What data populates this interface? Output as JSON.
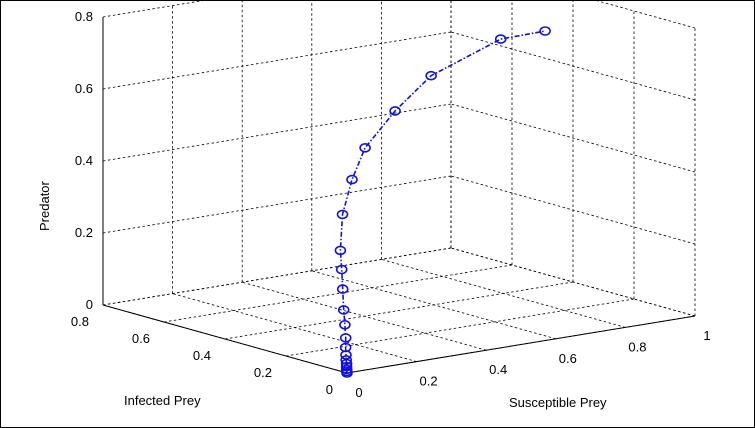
{
  "chart_data": {
    "type": "scatter",
    "projection": "3d",
    "xlabel": "Susceptible Prey",
    "ylabel": "Infected Prey",
    "zlabel": "Predator",
    "xlim": [
      0,
      1
    ],
    "ylim": [
      0,
      0.8
    ],
    "zlim": [
      0,
      0.8
    ],
    "xticks": [
      "0",
      "0.2",
      "0.4",
      "0.6",
      "0.8",
      "1"
    ],
    "yticks": [
      "0",
      "0.2",
      "0.4",
      "0.6",
      "0.8"
    ],
    "zticks": [
      "0",
      "0.2",
      "0.4",
      "0.6",
      "0.8"
    ],
    "grid": true,
    "line_style": "dash-dot with circle markers",
    "colors": {
      "series": "#1010e0"
    },
    "series": [
      {
        "x": [
          0.0,
          0.003,
          0.007,
          0.012,
          0.018,
          0.025,
          0.034,
          0.046,
          0.062,
          0.08,
          0.1,
          0.128,
          0.16,
          0.2,
          0.25,
          0.33,
          0.42,
          0.55,
          0.68,
          0.88,
          0.99
        ],
        "y": [
          0.0,
          0.004,
          0.009,
          0.015,
          0.022,
          0.031,
          0.042,
          0.057,
          0.075,
          0.098,
          0.125,
          0.16,
          0.2,
          0.25,
          0.3,
          0.36,
          0.42,
          0.47,
          0.5,
          0.5,
          0.48
        ],
        "z": [
          0.0,
          0.003,
          0.007,
          0.012,
          0.018,
          0.025,
          0.035,
          0.05,
          0.07,
          0.098,
          0.13,
          0.175,
          0.215,
          0.25,
          0.33,
          0.4,
          0.46,
          0.53,
          0.6,
          0.67,
          0.68
        ]
      }
    ]
  }
}
